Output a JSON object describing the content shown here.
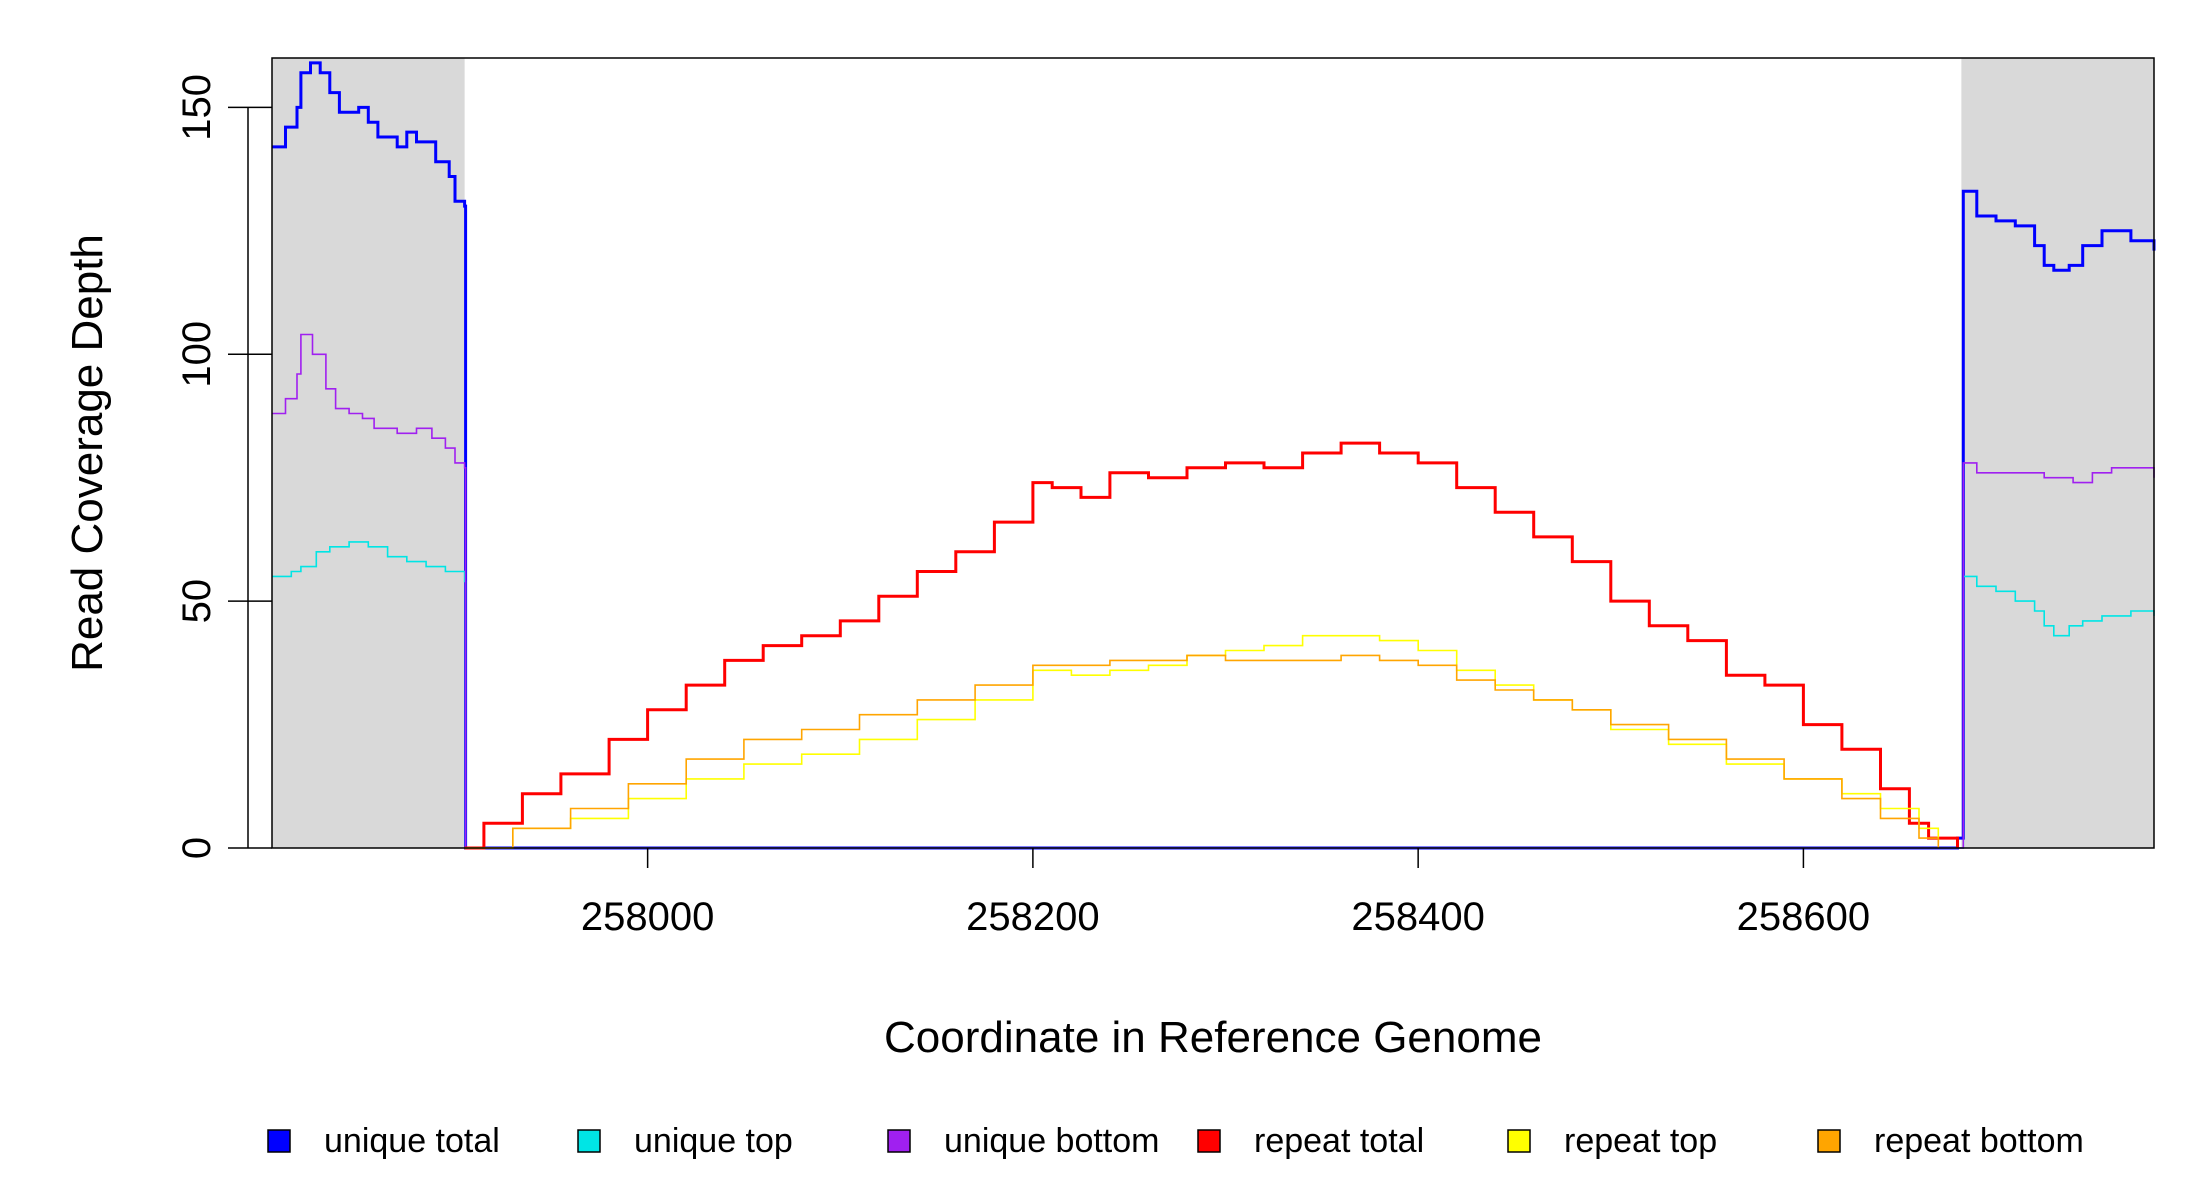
{
  "chart_data": {
    "type": "line",
    "xlabel": "Coordinate in Reference Genome",
    "ylabel": "Read Coverage Depth",
    "xlim": [
      257805,
      258782
    ],
    "ylim": [
      0,
      160
    ],
    "x_ticks": [
      258000,
      258200,
      258400,
      258600
    ],
    "y_ticks": [
      0,
      50,
      100,
      150
    ],
    "grid": false,
    "legend_position": "bottom",
    "shaded_regions": [
      {
        "x_start": 257805,
        "x_end": 257905,
        "color": "#d9d9d9"
      },
      {
        "x_start": 258682,
        "x_end": 258782,
        "color": "#d9d9d9"
      }
    ],
    "series": [
      {
        "name": "unique total",
        "color": "#0000ff",
        "points": [
          [
            257805,
            142
          ],
          [
            257812,
            146
          ],
          [
            257818,
            150
          ],
          [
            257820,
            157
          ],
          [
            257825,
            159
          ],
          [
            257830,
            157
          ],
          [
            257835,
            153
          ],
          [
            257840,
            149
          ],
          [
            257850,
            150
          ],
          [
            257855,
            147
          ],
          [
            257860,
            144
          ],
          [
            257870,
            142
          ],
          [
            257875,
            145
          ],
          [
            257880,
            143
          ],
          [
            257890,
            139
          ],
          [
            257897,
            136
          ],
          [
            257900,
            131
          ],
          [
            257905,
            130
          ],
          [
            257905.5,
            0
          ],
          [
            258675,
            0
          ],
          [
            258680,
            2
          ],
          [
            258683,
            133
          ],
          [
            258690,
            128
          ],
          [
            258700,
            127
          ],
          [
            258710,
            126
          ],
          [
            258720,
            122
          ],
          [
            258725,
            118
          ],
          [
            258730,
            117
          ],
          [
            258738,
            118
          ],
          [
            258745,
            122
          ],
          [
            258755,
            125
          ],
          [
            258770,
            123
          ],
          [
            258782,
            121
          ]
        ]
      },
      {
        "name": "unique top",
        "color": "#00e5e5",
        "points": [
          [
            257805,
            55
          ],
          [
            257815,
            56
          ],
          [
            257820,
            57
          ],
          [
            257828,
            60
          ],
          [
            257835,
            61
          ],
          [
            257845,
            62
          ],
          [
            257855,
            61
          ],
          [
            257865,
            59
          ],
          [
            257875,
            58
          ],
          [
            257885,
            57
          ],
          [
            257895,
            56
          ],
          [
            257905,
            54
          ],
          [
            257905.5,
            0
          ],
          [
            258682,
            0
          ],
          [
            258683,
            55
          ],
          [
            258690,
            53
          ],
          [
            258700,
            52
          ],
          [
            258710,
            50
          ],
          [
            258720,
            48
          ],
          [
            258725,
            45
          ],
          [
            258730,
            43
          ],
          [
            258738,
            45
          ],
          [
            258745,
            46
          ],
          [
            258755,
            47
          ],
          [
            258770,
            48
          ],
          [
            258782,
            47
          ]
        ]
      },
      {
        "name": "unique bottom",
        "color": "#a020f0",
        "points": [
          [
            257805,
            88
          ],
          [
            257812,
            91
          ],
          [
            257818,
            96
          ],
          [
            257820,
            104
          ],
          [
            257826,
            100
          ],
          [
            257833,
            93
          ],
          [
            257838,
            89
          ],
          [
            257845,
            88
          ],
          [
            257852,
            87
          ],
          [
            257858,
            85
          ],
          [
            257870,
            84
          ],
          [
            257880,
            85
          ],
          [
            257888,
            83
          ],
          [
            257895,
            81
          ],
          [
            257900,
            78
          ],
          [
            257905,
            77
          ],
          [
            257905.5,
            0
          ],
          [
            258682,
            0
          ],
          [
            258683,
            78
          ],
          [
            258690,
            76
          ],
          [
            258700,
            76
          ],
          [
            258715,
            76
          ],
          [
            258725,
            75
          ],
          [
            258740,
            74
          ],
          [
            258750,
            76
          ],
          [
            258760,
            77
          ],
          [
            258782,
            75
          ]
        ]
      },
      {
        "name": "repeat total",
        "color": "#ff0000",
        "points": [
          [
            257905,
            0
          ],
          [
            257915,
            5
          ],
          [
            257935,
            11
          ],
          [
            257955,
            15
          ],
          [
            257980,
            22
          ],
          [
            258000,
            28
          ],
          [
            258020,
            33
          ],
          [
            258040,
            38
          ],
          [
            258060,
            41
          ],
          [
            258080,
            43
          ],
          [
            258100,
            46
          ],
          [
            258120,
            51
          ],
          [
            258140,
            56
          ],
          [
            258160,
            60
          ],
          [
            258180,
            66
          ],
          [
            258200,
            74
          ],
          [
            258210,
            73
          ],
          [
            258225,
            71
          ],
          [
            258240,
            76
          ],
          [
            258260,
            75
          ],
          [
            258280,
            77
          ],
          [
            258300,
            78
          ],
          [
            258320,
            77
          ],
          [
            258340,
            80
          ],
          [
            258360,
            82
          ],
          [
            258380,
            80
          ],
          [
            258400,
            78
          ],
          [
            258420,
            73
          ],
          [
            258440,
            68
          ],
          [
            258460,
            63
          ],
          [
            258480,
            58
          ],
          [
            258500,
            50
          ],
          [
            258520,
            45
          ],
          [
            258540,
            42
          ],
          [
            258560,
            35
          ],
          [
            258580,
            33
          ],
          [
            258600,
            25
          ],
          [
            258620,
            20
          ],
          [
            258640,
            12
          ],
          [
            258655,
            5
          ],
          [
            258665,
            2
          ],
          [
            258680,
            0
          ]
        ]
      },
      {
        "name": "repeat top",
        "color": "#ffff00",
        "points": [
          [
            257905,
            0
          ],
          [
            257930,
            4
          ],
          [
            257960,
            6
          ],
          [
            257990,
            10
          ],
          [
            258020,
            14
          ],
          [
            258050,
            17
          ],
          [
            258080,
            19
          ],
          [
            258110,
            22
          ],
          [
            258140,
            26
          ],
          [
            258170,
            30
          ],
          [
            258200,
            36
          ],
          [
            258220,
            35
          ],
          [
            258240,
            36
          ],
          [
            258260,
            37
          ],
          [
            258280,
            39
          ],
          [
            258300,
            40
          ],
          [
            258320,
            41
          ],
          [
            258340,
            43
          ],
          [
            258360,
            43
          ],
          [
            258380,
            42
          ],
          [
            258400,
            40
          ],
          [
            258420,
            36
          ],
          [
            258440,
            33
          ],
          [
            258460,
            30
          ],
          [
            258480,
            28
          ],
          [
            258500,
            24
          ],
          [
            258530,
            21
          ],
          [
            258560,
            17
          ],
          [
            258590,
            14
          ],
          [
            258620,
            11
          ],
          [
            258640,
            8
          ],
          [
            258660,
            4
          ],
          [
            258670,
            1
          ]
        ]
      },
      {
        "name": "repeat bottom",
        "color": "#ffa500",
        "points": [
          [
            257905,
            0
          ],
          [
            257930,
            4
          ],
          [
            257960,
            8
          ],
          [
            257990,
            13
          ],
          [
            258020,
            18
          ],
          [
            258050,
            22
          ],
          [
            258080,
            24
          ],
          [
            258110,
            27
          ],
          [
            258140,
            30
          ],
          [
            258170,
            33
          ],
          [
            258200,
            37
          ],
          [
            258220,
            37
          ],
          [
            258240,
            38
          ],
          [
            258260,
            38
          ],
          [
            258280,
            39
          ],
          [
            258300,
            38
          ],
          [
            258320,
            38
          ],
          [
            258340,
            38
          ],
          [
            258360,
            39
          ],
          [
            258380,
            38
          ],
          [
            258400,
            37
          ],
          [
            258420,
            34
          ],
          [
            258440,
            32
          ],
          [
            258460,
            30
          ],
          [
            258480,
            28
          ],
          [
            258500,
            25
          ],
          [
            258530,
            22
          ],
          [
            258560,
            18
          ],
          [
            258590,
            14
          ],
          [
            258620,
            10
          ],
          [
            258640,
            6
          ],
          [
            258660,
            2
          ],
          [
            258670,
            0
          ]
        ]
      }
    ]
  }
}
